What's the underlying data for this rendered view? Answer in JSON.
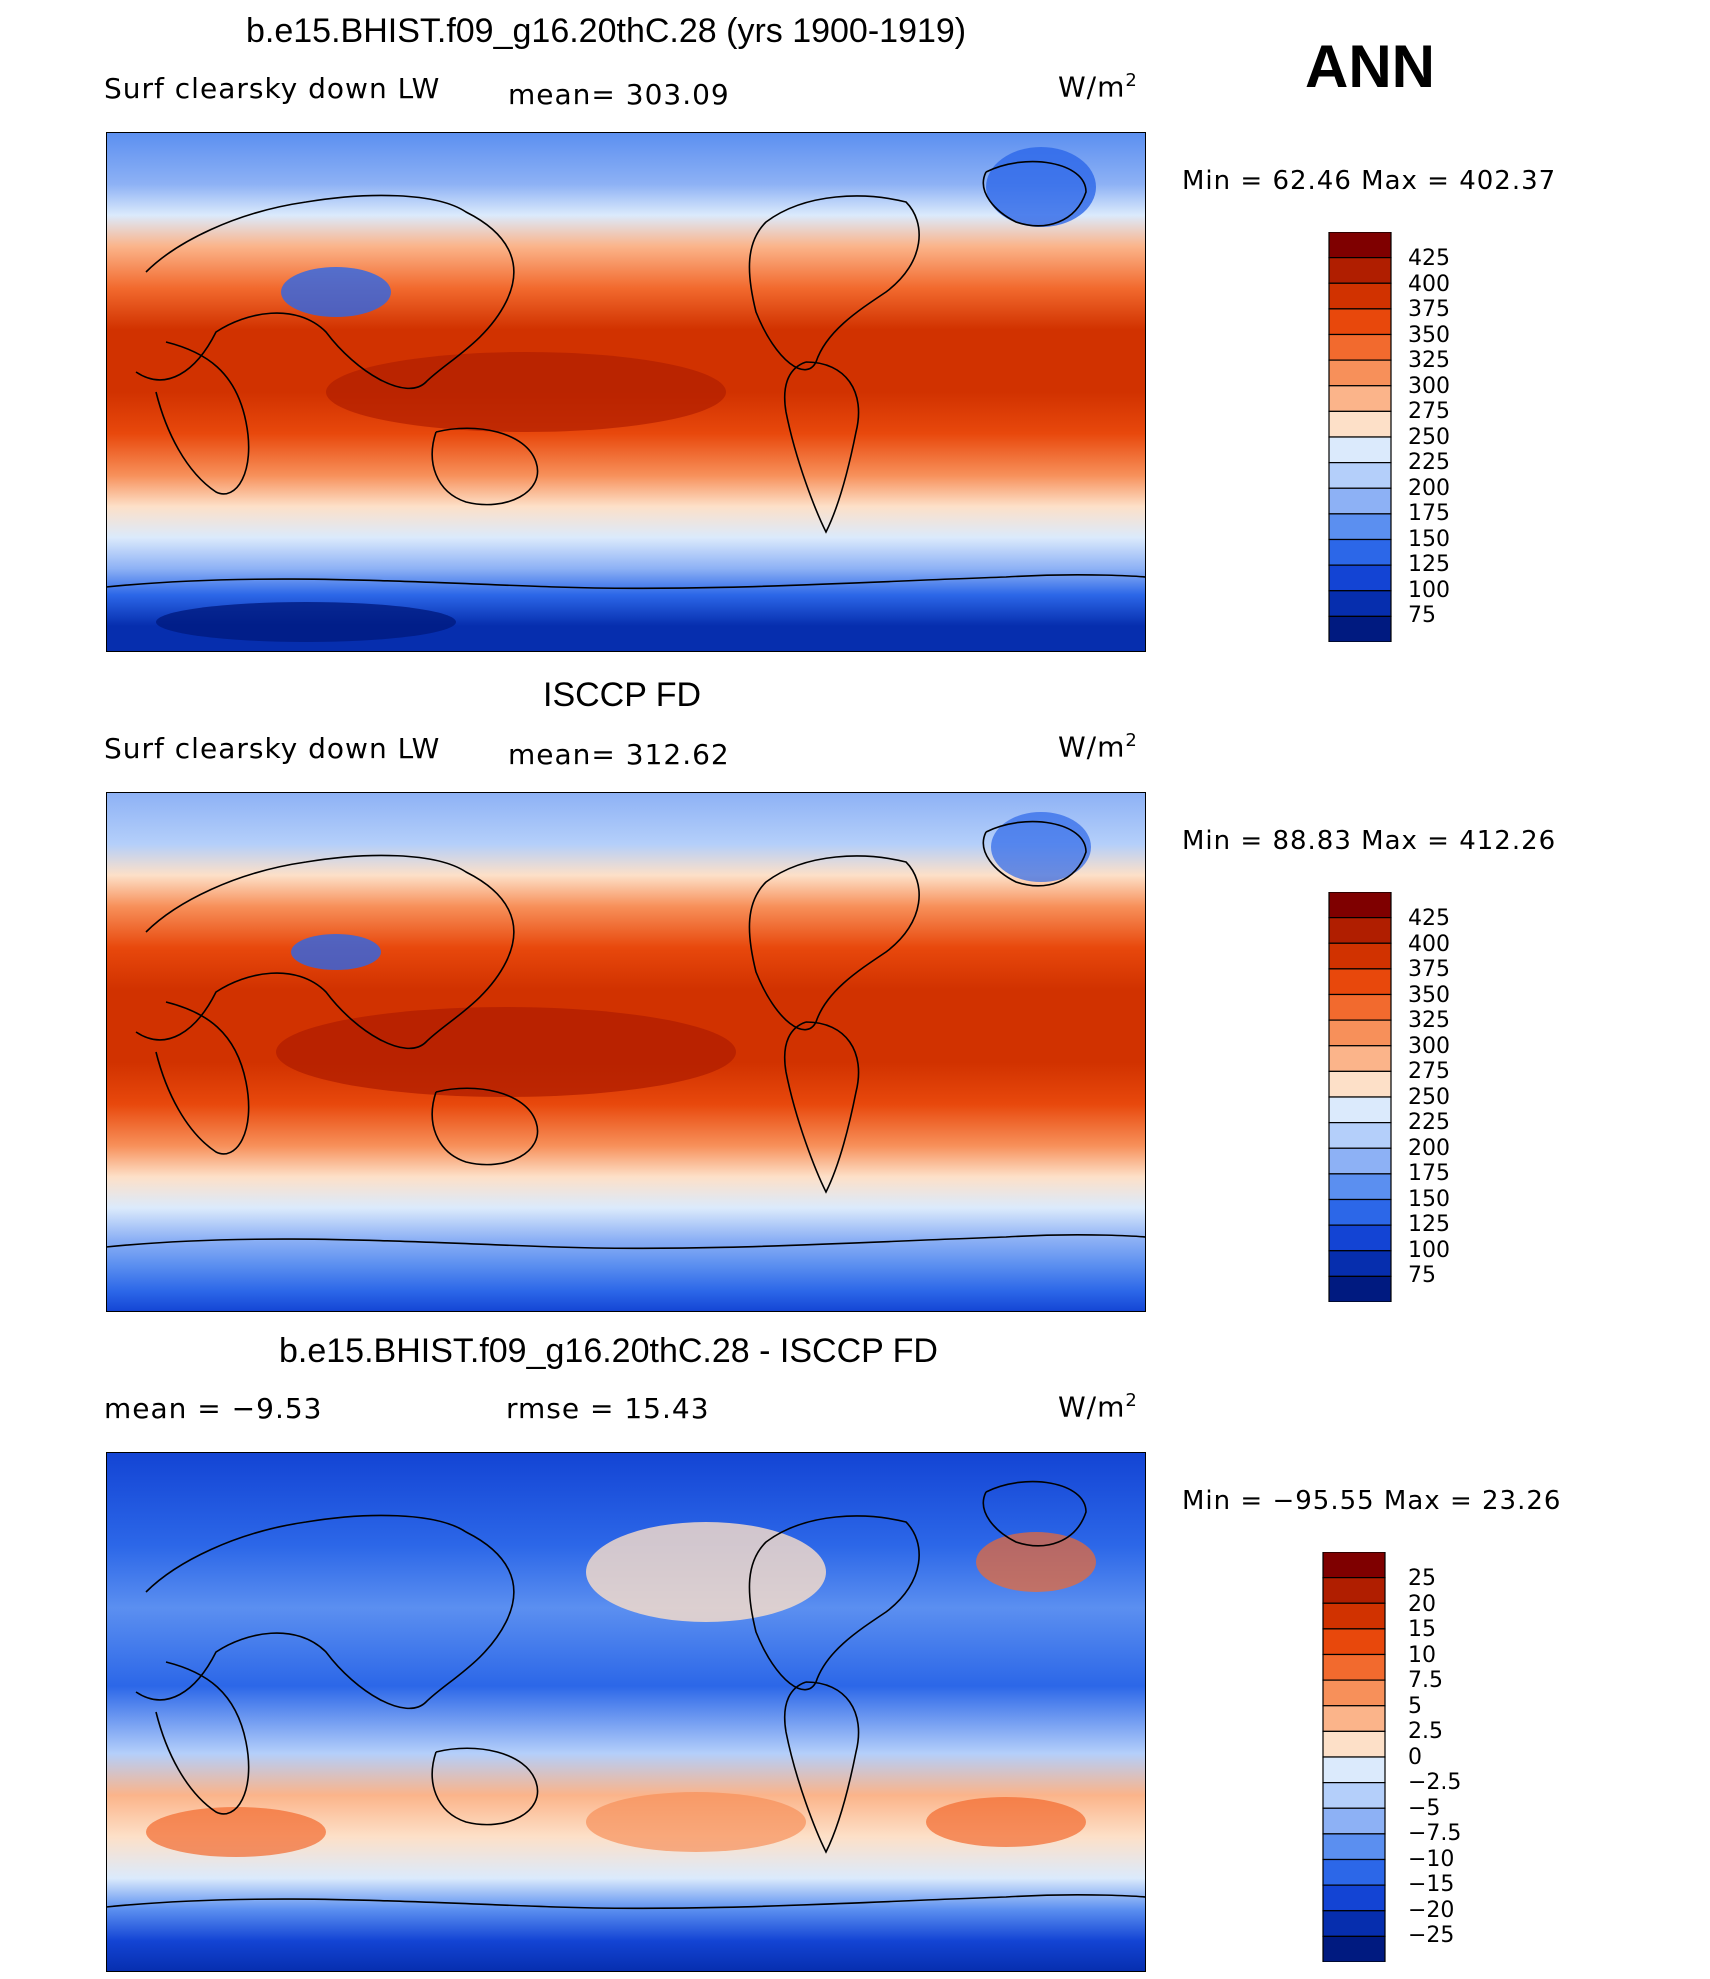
{
  "season": "ANN",
  "units": "W/m",
  "units_exp": "2",
  "panels": [
    {
      "title": "b.e15.BHIST.f09_g16.20thC.28 (yrs 1900-1919)",
      "variable": "Surf clearsky down LW",
      "stat1": "mean=  303.09",
      "stat2": "",
      "minmax": "Min =   62.46 Max = 402.37",
      "levels": [
        "425",
        "400",
        "375",
        "350",
        "325",
        "300",
        "275",
        "250",
        "225",
        "200",
        "175",
        "150",
        "125",
        "100",
        "75"
      ],
      "colors": [
        "#7f0000",
        "#b01e00",
        "#d13200",
        "#e8480c",
        "#f26a2e",
        "#f7905a",
        "#fbb48a",
        "#fde0c8",
        "#dbeafc",
        "#b4cffa",
        "#8db1f5",
        "#5b8ff0",
        "#2c67e8",
        "#1344d4",
        "#062eae",
        "#001a80"
      ]
    },
    {
      "title": "ISCCP FD",
      "variable": "Surf clearsky down LW",
      "stat1": "mean=  312.62",
      "stat2": "",
      "minmax": "Min =   88.83 Max = 412.26",
      "levels": [
        "425",
        "400",
        "375",
        "350",
        "325",
        "300",
        "275",
        "250",
        "225",
        "200",
        "175",
        "150",
        "125",
        "100",
        "75"
      ],
      "colors": [
        "#7f0000",
        "#b01e00",
        "#d13200",
        "#e8480c",
        "#f26a2e",
        "#f7905a",
        "#fbb48a",
        "#fde0c8",
        "#dbeafc",
        "#b4cffa",
        "#8db1f5",
        "#5b8ff0",
        "#2c67e8",
        "#1344d4",
        "#062eae",
        "#001a80"
      ]
    },
    {
      "title": "b.e15.BHIST.f09_g16.20thC.28 - ISCCP FD",
      "variable": "mean =   −9.53",
      "stat1": "",
      "stat2": "rmse =    15.43",
      "minmax": "Min = −95.55 Max =   23.26",
      "levels": [
        "25",
        "20",
        "15",
        "10",
        "7.5",
        "5",
        "2.5",
        "0",
        "−2.5",
        "−5",
        "−7.5",
        "−10",
        "−15",
        "−20",
        "−25"
      ],
      "colors": [
        "#7f0000",
        "#b01e00",
        "#d13200",
        "#e8480c",
        "#f26a2e",
        "#f7905a",
        "#fbb48a",
        "#fde0c8",
        "#dbeafc",
        "#b4cffa",
        "#8db1f5",
        "#5b8ff0",
        "#2c67e8",
        "#1344d4",
        "#062eae",
        "#001a80"
      ]
    }
  ],
  "chart_data": [
    {
      "type": "heatmap",
      "title": "b.e15.BHIST.f09_g16.20thC.28 (yrs 1900-1919)",
      "variable": "Surf clearsky down LW",
      "units": "W/m2",
      "mean": 303.09,
      "min": 62.46,
      "max": 402.37,
      "contour_levels": [
        75,
        100,
        125,
        150,
        175,
        200,
        225,
        250,
        275,
        300,
        325,
        350,
        375,
        400,
        425
      ]
    },
    {
      "type": "heatmap",
      "title": "ISCCP FD",
      "variable": "Surf clearsky down LW",
      "units": "W/m2",
      "mean": 312.62,
      "min": 88.83,
      "max": 412.26,
      "contour_levels": [
        75,
        100,
        125,
        150,
        175,
        200,
        225,
        250,
        275,
        300,
        325,
        350,
        375,
        400,
        425
      ]
    },
    {
      "type": "heatmap",
      "title": "b.e15.BHIST.f09_g16.20thC.28 - ISCCP FD",
      "units": "W/m2",
      "mean": -9.53,
      "rmse": 15.43,
      "min": -95.55,
      "max": 23.26,
      "contour_levels": [
        -25,
        -20,
        -15,
        -10,
        -7.5,
        -5,
        -2.5,
        0,
        2.5,
        5,
        7.5,
        10,
        15,
        20,
        25
      ]
    }
  ]
}
